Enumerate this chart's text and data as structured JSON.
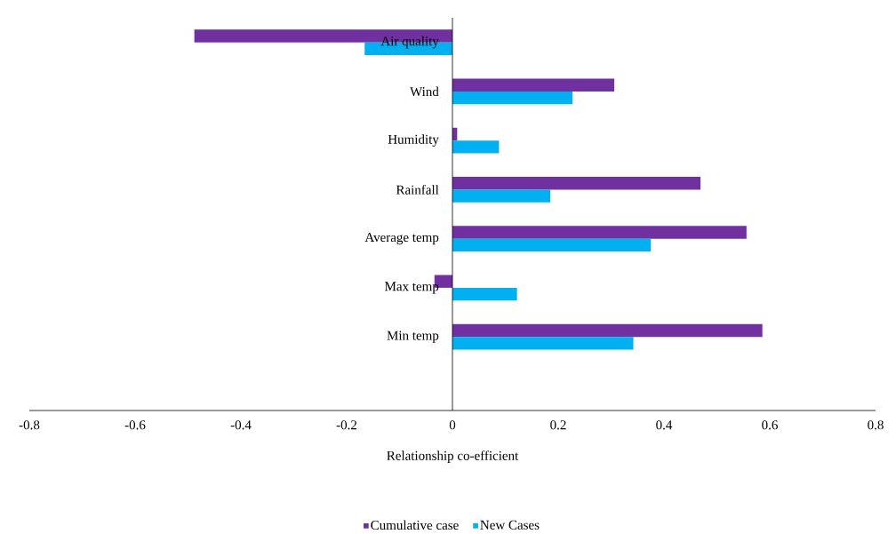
{
  "chart_data": {
    "type": "bar",
    "orientation": "horizontal",
    "xlabel": "Relationship co-efficient",
    "categories": [
      "Air quality",
      "Wind",
      "Humidity",
      "Rainfall",
      "Average temp",
      "Max temp",
      "Min temp",
      null
    ],
    "series": [
      {
        "name": "Cumulative case",
        "color": "#7030a0",
        "values": [
          -0.488,
          0.306,
          0.009,
          0.469,
          0.556,
          -0.034,
          0.586,
          null
        ]
      },
      {
        "name": "New Cases",
        "color": "#00b0f0",
        "values": [
          -0.166,
          0.227,
          0.088,
          0.185,
          0.375,
          0.122,
          0.342,
          null
        ]
      }
    ],
    "xlim": [
      -0.8,
      0.8
    ],
    "xticks": [
      -0.8,
      -0.6,
      -0.4,
      -0.2,
      0,
      0.2,
      0.4,
      0.6,
      0.8
    ],
    "grid": false,
    "legend": "bottom"
  }
}
